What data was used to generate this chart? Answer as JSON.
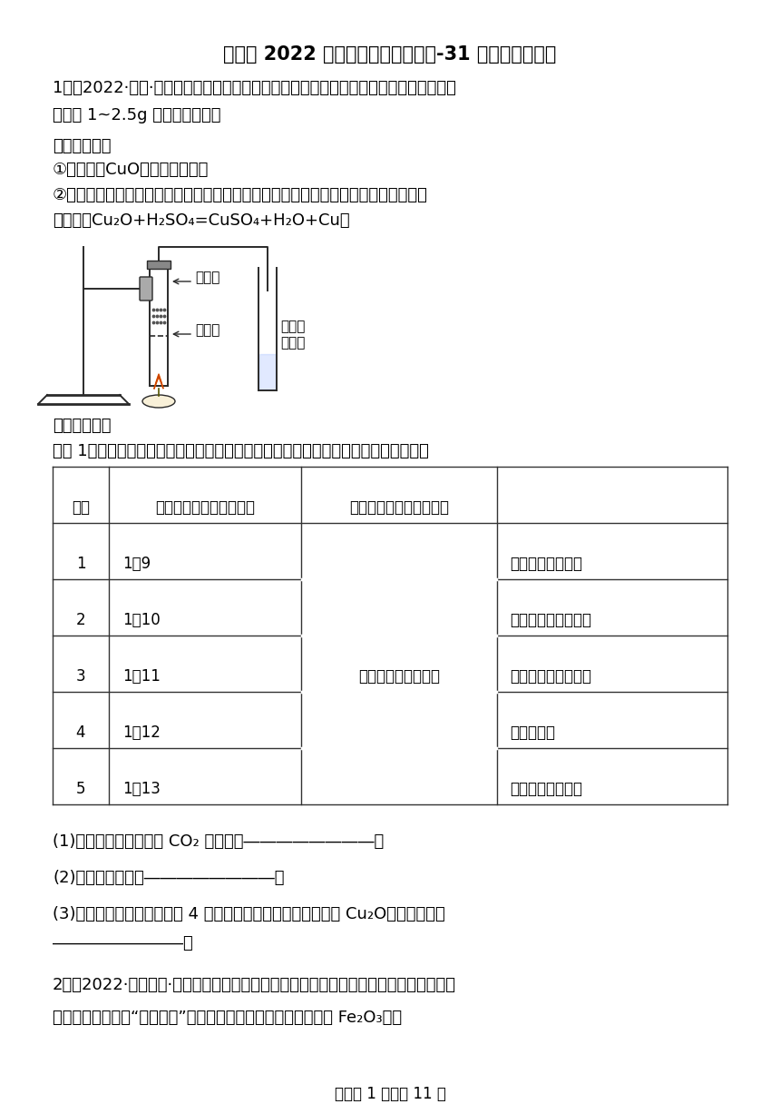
{
  "title": "浙江省 2022 年中考科学模拟题汇编-31 金属（探究题）",
  "background_color": "#ffffff",
  "para1": "1．（2022·浙江·一模）为探究碳还原氧化铜的最佳实验条件，用木炭粉和氧化铜的干燥",
  "para1b": "混合物 1~2.5g 进行系列实验。",
  "section1": "「查阅资料」",
  "item1": "①氧化铜（CuO）为黑色固体。",
  "item2a": "②碳还原氧化铜得到的铜中可能含有少量的氧化亚铜；氧化亚铜为红色固体，能与稀硫",
  "item2b": "酸反应：Cu₂O+H₂SO₄=CuSO₄+H₂O+Cu。",
  "section2": "「进行实验」",
  "exp_intro": "实验 1：取一定量混合物，用如图所示装置进行多次试验，获得如下实验数据与现象。",
  "table_header_col1": "序号",
  "table_header_col2": "木炭粉与氧化铜的质量比",
  "table_header_col3": "反应后物质的颜色、状态",
  "table_rows": [
    [
      "1",
      "1：9",
      "",
      "混有少量黑色物质"
    ],
    [
      "2",
      "1：10",
      "",
      "混有很少量黑色物质"
    ],
    [
      "3",
      "1：11",
      "红色固体有金属光泽",
      "混有极少量黑色物质"
    ],
    [
      "4",
      "1：12",
      "",
      "无黑色物质"
    ],
    [
      "5",
      "1：13",
      "",
      "混有较多黑色物质"
    ]
  ],
  "q1": "(1)实验中，证明产生了 CO₂ 的现象是――――――――。",
  "q2": "(2)该实验的结论是――――――――。",
  "q3a": "(3)《反思与评价》为检验第 4 次实验的生成红色固体中是否含 Cu₂O，所需试剂是",
  "q3b": "――――――――。",
  "para2a": "2．（2022·浙江金华·统考一模）在科学实验操作技能大赛中，小华同学用所学的科学知",
  "para2b": "识迅速搭建了一套“模拟炼铁”的冶炼装置（铁矿石的主要成分为 Fe₂O₃）。",
  "footer": "试卷第 1 页，共 11 页"
}
